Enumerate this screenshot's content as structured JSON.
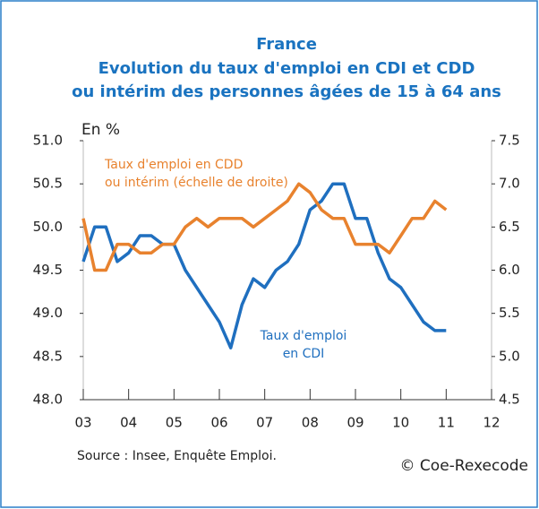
{
  "chart_data": {
    "type": "line",
    "title": [
      "France",
      "Evolution du taux d'emploi en CDI et CDD",
      "ou intérim des personnes âgées de 15 à 64 ans"
    ],
    "y_label": "En %",
    "source": "Source : Insee, Enquête Emploi.",
    "copyright": "© Coe-Rexecode",
    "x": [
      2003,
      2003.25,
      2003.5,
      2003.75,
      2004,
      2004.25,
      2004.5,
      2004.75,
      2005,
      2005.25,
      2005.5,
      2005.75,
      2006,
      2006.25,
      2006.5,
      2006.75,
      2007,
      2007.25,
      2007.5,
      2007.75,
      2008,
      2008.25,
      2008.5,
      2008.75,
      2009,
      2009.25,
      2009.5,
      2009.75,
      2010,
      2010.25,
      2010.5,
      2010.75,
      2011
    ],
    "series": [
      {
        "name": [
          "Taux d'emploi",
          "en CDI"
        ],
        "color": "#1f6fbf",
        "axis": "y",
        "values": [
          49.6,
          50.0,
          50.0,
          49.6,
          49.7,
          49.9,
          49.9,
          49.8,
          49.8,
          49.5,
          49.3,
          49.1,
          48.9,
          48.6,
          49.1,
          49.4,
          49.3,
          49.5,
          49.6,
          49.8,
          50.2,
          50.3,
          50.5,
          50.5,
          50.1,
          50.1,
          49.7,
          49.4,
          49.3,
          49.1,
          48.9,
          48.8,
          48.8
        ]
      },
      {
        "name": [
          "Taux d'emploi en CDD",
          "ou intérim (échelle de droite)"
        ],
        "color": "#e8822e",
        "axis": "y2",
        "values": [
          6.6,
          6.0,
          6.0,
          6.3,
          6.3,
          6.2,
          6.2,
          6.3,
          6.3,
          6.5,
          6.6,
          6.5,
          6.6,
          6.6,
          6.6,
          6.5,
          6.6,
          6.7,
          6.8,
          7.0,
          6.9,
          6.7,
          6.6,
          6.6,
          6.3,
          6.3,
          6.3,
          6.2,
          6.4,
          6.6,
          6.6,
          6.8,
          6.7
        ]
      }
    ],
    "xlim": [
      2003,
      2012
    ],
    "xticks": [
      {
        "value": 2003,
        "label": "03"
      },
      {
        "value": 2004,
        "label": "04"
      },
      {
        "value": 2005,
        "label": "05"
      },
      {
        "value": 2006,
        "label": "06"
      },
      {
        "value": 2007,
        "label": "07"
      },
      {
        "value": 2008,
        "label": "08"
      },
      {
        "value": 2009,
        "label": "09"
      },
      {
        "value": 2010,
        "label": "10"
      },
      {
        "value": 2011,
        "label": "11"
      },
      {
        "value": 2012,
        "label": "12"
      }
    ],
    "ylim": [
      48,
      51
    ],
    "yticks": [
      {
        "value": 48,
        "label": "48.0"
      },
      48.5,
      {
        "value": 49,
        "label": "49.0"
      },
      49.5,
      {
        "value": 50,
        "label": "50.0"
      },
      50.5,
      {
        "value": 51,
        "label": "51.0"
      }
    ],
    "y2lim": [
      4.5,
      7.5
    ],
    "y2ticks": [
      4.5,
      {
        "value": 5,
        "label": "5.0"
      },
      5.5,
      {
        "value": 6,
        "label": "6.0"
      },
      6.5,
      {
        "value": 7,
        "label": "7.0"
      },
      7.5
    ]
  }
}
